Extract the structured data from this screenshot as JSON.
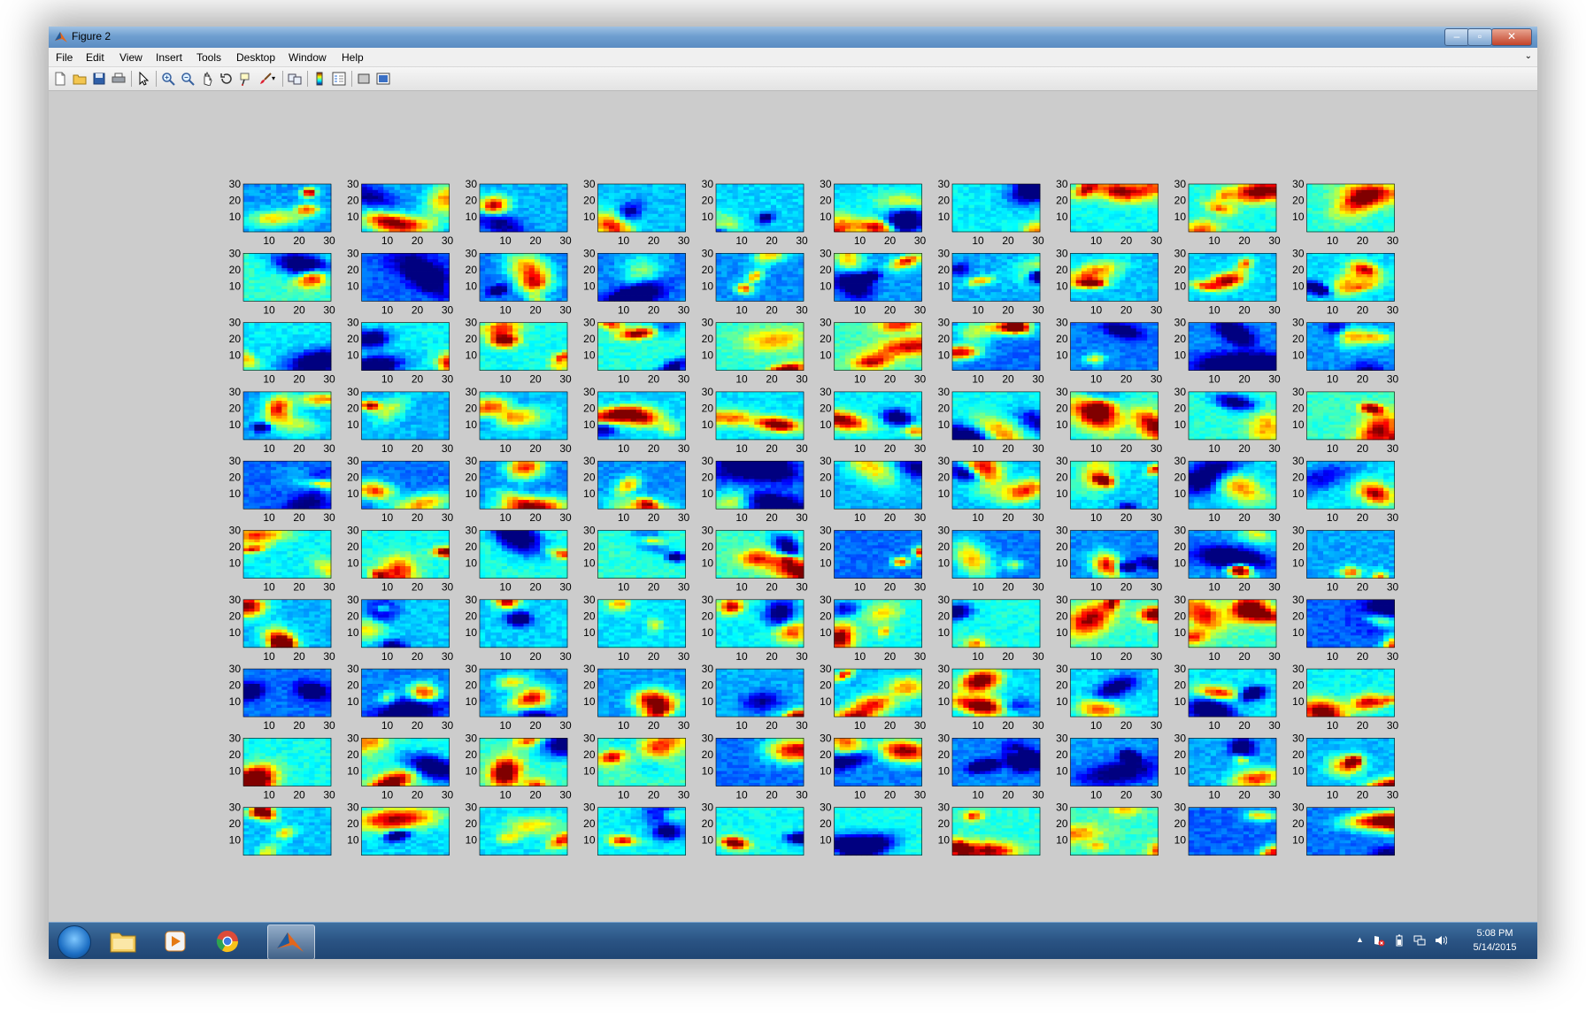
{
  "window": {
    "title": "Figure 2",
    "controls": {
      "minimize": "–",
      "maximize": "▫",
      "close": "✕"
    }
  },
  "menu": {
    "items": [
      "File",
      "Edit",
      "View",
      "Insert",
      "Tools",
      "Desktop",
      "Window",
      "Help"
    ],
    "more": "⌄"
  },
  "toolbar": {
    "icons": [
      "new-figure-icon",
      "open-file-icon",
      "save-icon",
      "print-icon",
      "pointer-icon",
      "zoom-in-icon",
      "zoom-out-icon",
      "pan-icon",
      "rotate-3d-icon",
      "data-cursor-icon",
      "brush-icon",
      "brush-dropdown-icon",
      "link-plot-icon",
      "colorbar-icon",
      "legend-icon",
      "hide-plot-tools-icon",
      "show-plot-tools-icon"
    ]
  },
  "figure": {
    "rows": 10,
    "cols": 10,
    "ytick_labels": [
      "30",
      "20",
      "10"
    ],
    "xtick_labels": [
      "10",
      "20",
      "30"
    ],
    "colormap": "jet"
  },
  "taskbar": {
    "apps": [
      "windows-explorer-icon",
      "media-player-icon",
      "chrome-icon",
      "matlab-icon"
    ],
    "active_app": "matlab-icon",
    "tray_icons": [
      "show-hidden-icons-icon",
      "action-center-icon",
      "battery-icon",
      "network-icon",
      "volume-icon"
    ],
    "tray_arrow": "▲",
    "time": "5:08 PM",
    "date": "5/14/2015"
  }
}
